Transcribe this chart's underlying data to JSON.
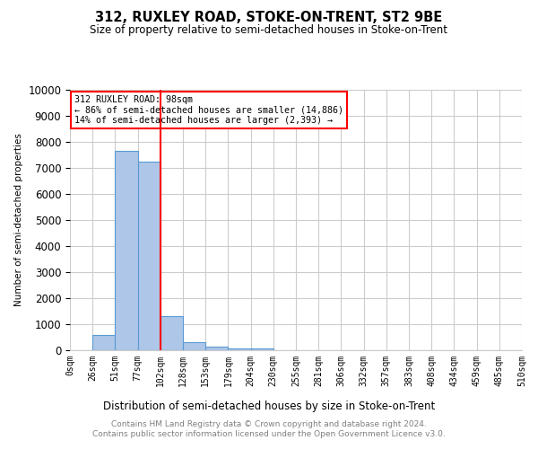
{
  "title": "312, RUXLEY ROAD, STOKE-ON-TRENT, ST2 9BE",
  "subtitle": "Size of property relative to semi-detached houses in Stoke-on-Trent",
  "xlabel": "Distribution of semi-detached houses by size in Stoke-on-Trent",
  "ylabel": "Number of semi-detached properties",
  "footer": "Contains HM Land Registry data © Crown copyright and database right 2024.\nContains public sector information licensed under the Open Government Licence v3.0.",
  "bin_labels": [
    "0sqm",
    "26sqm",
    "51sqm",
    "77sqm",
    "102sqm",
    "128sqm",
    "153sqm",
    "179sqm",
    "204sqm",
    "230sqm",
    "255sqm",
    "281sqm",
    "306sqm",
    "332sqm",
    "357sqm",
    "383sqm",
    "408sqm",
    "434sqm",
    "459sqm",
    "485sqm",
    "510sqm"
  ],
  "bar_heights": [
    0,
    570,
    7650,
    7230,
    1320,
    310,
    130,
    80,
    80,
    0,
    0,
    0,
    0,
    0,
    0,
    0,
    0,
    0,
    0,
    0
  ],
  "bar_color": "#aec6e8",
  "bar_edge_color": "#5b9bd5",
  "vline_x": 4,
  "vline_color": "red",
  "annotation_title": "312 RUXLEY ROAD: 98sqm",
  "annotation_line1": "← 86% of semi-detached houses are smaller (14,886)",
  "annotation_line2": "14% of semi-detached houses are larger (2,393) →",
  "ylim": [
    0,
    10000
  ],
  "yticks": [
    0,
    1000,
    2000,
    3000,
    4000,
    5000,
    6000,
    7000,
    8000,
    9000,
    10000
  ],
  "grid_color": "#cccccc",
  "background_color": "white"
}
